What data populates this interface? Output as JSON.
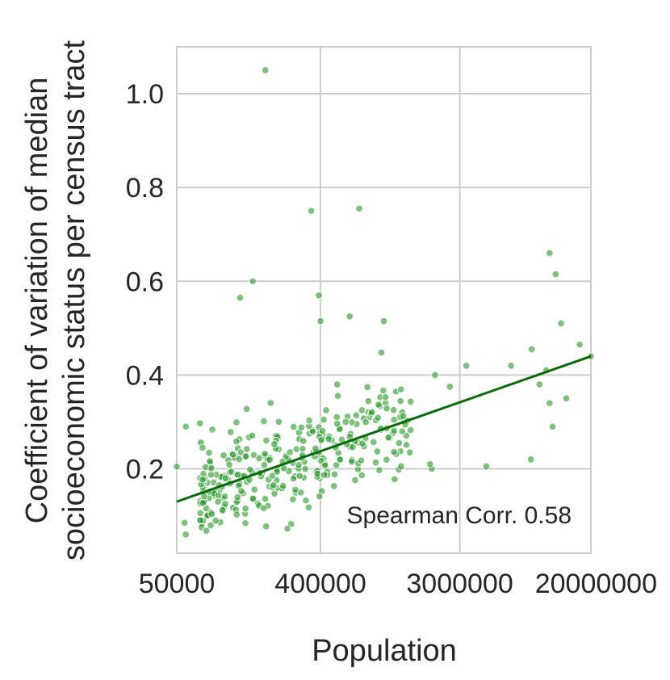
{
  "chart_data": {
    "type": "scatter",
    "title": "",
    "xlabel": "Population",
    "ylabel": [
      "Coefficient of variation of median",
      "socioeconomic status per census tract"
    ],
    "xscale": "log",
    "xlim": [
      50000,
      20000000
    ],
    "ylim": [
      0.02,
      1.1
    ],
    "xticks": [
      50000,
      400000,
      3000000,
      20000000
    ],
    "xtick_labels": [
      "50000",
      "400000",
      "3000000",
      "20000000"
    ],
    "yticks": [
      0.2,
      0.4,
      0.6,
      0.8,
      1.0
    ],
    "ytick_labels": [
      "0.2",
      "0.4",
      "0.6",
      "0.8",
      "1.0"
    ],
    "grid": true,
    "point_color": "#2e9a2e",
    "line_color": "#0a6a0a",
    "annotation": "Spearman Corr. 0.58",
    "fit_line": {
      "x": [
        50000,
        20000000
      ],
      "y": [
        0.13,
        0.44
      ]
    },
    "outliers": [
      [
        180000,
        1.05
      ],
      [
        350000,
        0.75
      ],
      [
        700000,
        0.755
      ],
      [
        150000,
        0.6
      ],
      [
        125000,
        0.565
      ],
      [
        390000,
        0.57
      ],
      [
        400000,
        0.515
      ],
      [
        11000000,
        0.66
      ],
      [
        12000000,
        0.615
      ],
      [
        13000000,
        0.51
      ],
      [
        1000000,
        0.515
      ],
      [
        610000,
        0.525
      ],
      [
        14000000,
        0.35
      ],
      [
        17000000,
        0.465
      ],
      [
        20000000,
        0.44
      ],
      [
        8500000,
        0.455
      ],
      [
        6300000,
        0.42
      ],
      [
        3300000,
        0.42
      ],
      [
        2600000,
        0.375
      ],
      [
        2100000,
        0.4
      ],
      [
        4400000,
        0.205
      ],
      [
        8400000,
        0.22
      ],
      [
        9500000,
        0.38
      ],
      [
        10500000,
        0.41
      ],
      [
        11500000,
        0.29
      ],
      [
        11000000,
        0.34
      ],
      [
        2000000,
        0.2
      ],
      [
        1950000,
        0.21
      ],
      [
        56000,
        0.085
      ],
      [
        57000,
        0.06
      ],
      [
        50000,
        0.205
      ],
      [
        57000,
        0.29
      ]
    ],
    "points": {
      "count": 320,
      "x_range": [
        70000,
        1500000
      ],
      "note": "dense cluster; y roughly follows the fit line with scatter of about 0.05"
    }
  }
}
